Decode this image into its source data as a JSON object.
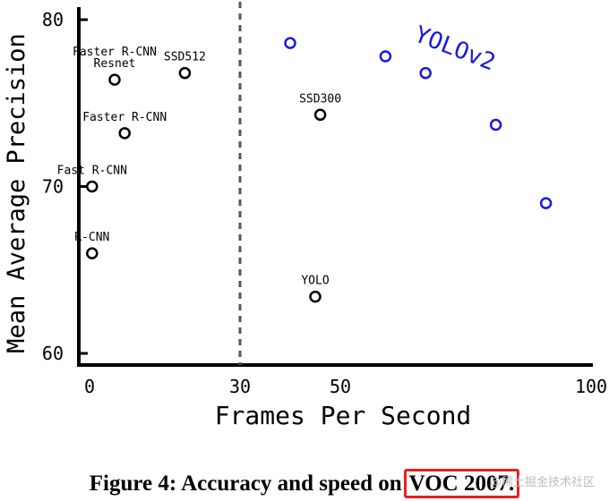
{
  "chart_data": {
    "type": "scatter",
    "xlabel": "Frames Per Second",
    "ylabel": "Mean Average Precision",
    "xlim": [
      0,
      100
    ],
    "ylim": [
      60,
      80
    ],
    "xticks": [
      "0",
      "30",
      "50",
      "100"
    ],
    "yticks": [
      "60",
      "70",
      "80"
    ],
    "reference_line": {
      "x": 30,
      "style": "dashed"
    },
    "series": [
      {
        "color": "#000000",
        "points": [
          {
            "x": 0.5,
            "y": 66.0,
            "label": "R-CNN"
          },
          {
            "x": 0.5,
            "y": 70.0,
            "label": "Fast R-CNN"
          },
          {
            "x": 7,
            "y": 73.2,
            "label": "Faster R-CNN"
          },
          {
            "x": 5,
            "y": 76.4,
            "label": "Faster R-CNN\nResnet"
          },
          {
            "x": 19,
            "y": 76.8,
            "label": "SSD512"
          },
          {
            "x": 46,
            "y": 74.3,
            "label": "SSD300"
          },
          {
            "x": 45,
            "y": 63.4,
            "label": "YOLO"
          }
        ]
      },
      {
        "name": "YOLOv2",
        "color": "#1a1adb",
        "points": [
          {
            "x": 40,
            "y": 78.6
          },
          {
            "x": 59,
            "y": 77.8
          },
          {
            "x": 67,
            "y": 76.8
          },
          {
            "x": 81,
            "y": 73.7
          },
          {
            "x": 91,
            "y": 69.0
          }
        ]
      }
    ]
  },
  "caption": {
    "prefix": "Figure 4:",
    "text": "Accuracy and speed on",
    "highlight": "VOC 2007."
  },
  "watermark": "@稀土掘金技术社区"
}
